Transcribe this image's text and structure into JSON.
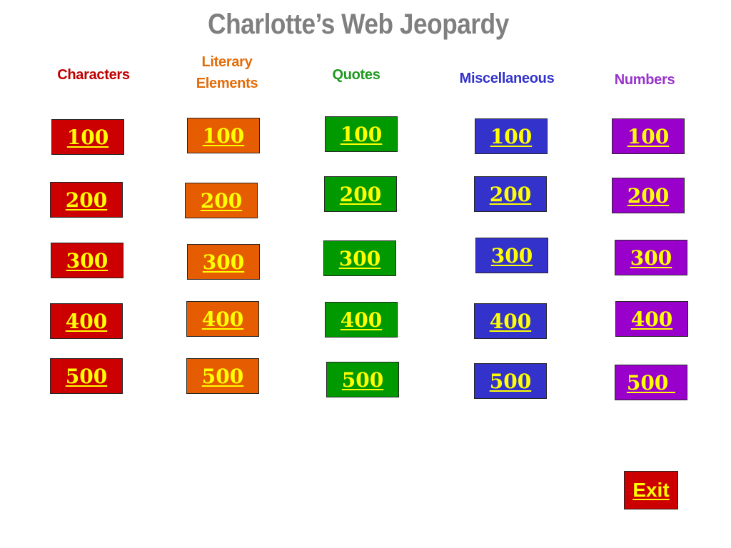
{
  "title": "Charlotte’s Web Jeopardy",
  "categories": [
    {
      "label": "Characters",
      "color": "#c00000"
    },
    {
      "label": "Literary Elements",
      "color": "#e36c09"
    },
    {
      "label": "Quotes",
      "color": "#1f9a1f"
    },
    {
      "label": "Miscellaneous",
      "color": "#3333cc"
    },
    {
      "label": "Numbers",
      "color": "#9933cc"
    }
  ],
  "colors": {
    "characters": "#cc0000",
    "literary": "#e65c00",
    "quotes": "#009900",
    "misc": "#3333cc",
    "numbers": "#9900cc",
    "tile_text": "#ffff00",
    "title": "#7f7f7f"
  },
  "columns": [
    {
      "values": [
        "100",
        "200",
        "300",
        "400",
        "500"
      ]
    },
    {
      "values": [
        "100",
        "200",
        "300",
        "400",
        "500"
      ]
    },
    {
      "values": [
        "100",
        "200",
        "300",
        "400",
        "500"
      ]
    },
    {
      "values": [
        "100",
        "200",
        "300",
        "400",
        "500"
      ]
    },
    {
      "values": [
        "100",
        "200",
        "300",
        "400",
        "500 "
      ]
    }
  ],
  "exit_label": "Exit"
}
